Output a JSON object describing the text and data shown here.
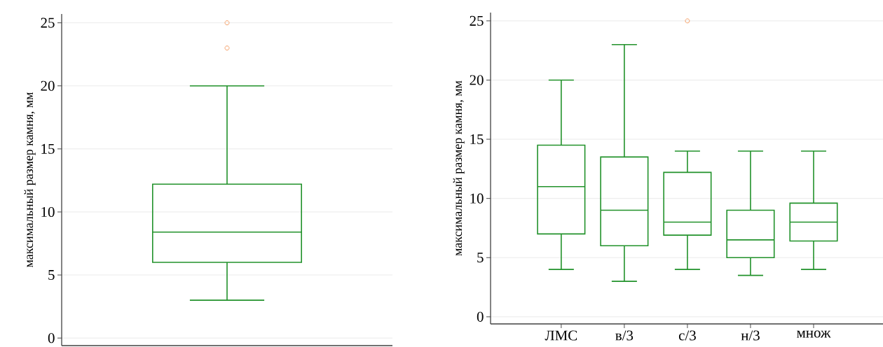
{
  "chart_data": [
    {
      "type": "box",
      "categories": [
        null
      ],
      "ylabel": "максимальный размер камня, мм",
      "ylim": [
        -0.6,
        25.7
      ],
      "yticks": [
        0,
        5,
        10,
        15,
        20,
        25
      ],
      "grid": "y",
      "series": [
        {
          "color": "#22922b",
          "boxes": [
            {
              "low": 3,
              "q1": 6,
              "median": 8.4,
              "q3": 12.2,
              "high": 20,
              "outliers": [
                23,
                25
              ]
            }
          ]
        }
      ]
    },
    {
      "type": "box",
      "categories": [
        "ЛМС",
        "в/3",
        "с/3",
        "н/3",
        "множ"
      ],
      "ylabel": "максимальный размер камня, мм",
      "ylim": [
        -0.6,
        25.7
      ],
      "yticks": [
        0,
        5,
        10,
        15,
        20,
        25
      ],
      "grid": "y",
      "series": [
        {
          "color": "#22922b",
          "boxes": [
            {
              "low": 4,
              "q1": 7,
              "median": 11,
              "q3": 14.5,
              "high": 20
            },
            {
              "low": 3,
              "q1": 6,
              "median": 9,
              "q3": 13.5,
              "high": 23
            },
            {
              "low": 4,
              "q1": 6.9,
              "median": 8,
              "q3": 12.2,
              "high": 14,
              "outliers": [
                25
              ]
            },
            {
              "low": 3.5,
              "q1": 5,
              "median": 6.5,
              "q3": 9,
              "high": 14
            },
            {
              "low": 4,
              "q1": 6.4,
              "median": 8,
              "q3": 9.6,
              "high": 14
            }
          ]
        }
      ]
    }
  ]
}
